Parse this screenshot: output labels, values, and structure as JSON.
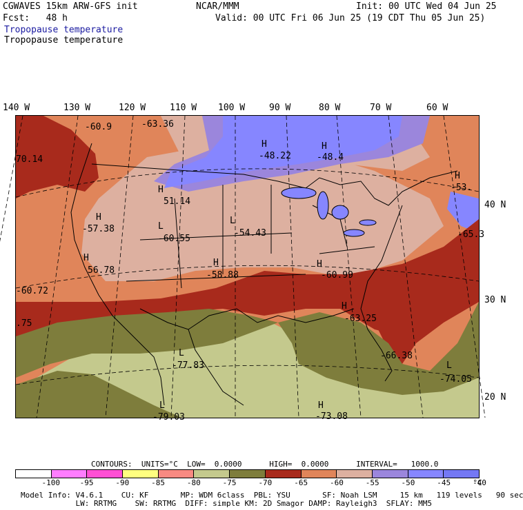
{
  "header": {
    "model_title": "CGWAVES 15km ARW-GFS init",
    "center": "NCAR/MMM",
    "init": "Init: 00 UTC Wed 04 Jun 25",
    "forecast": "Fcst:   48 h",
    "valid": "Valid: 00 UTC Fri 06 Jun 25 (19 CDT Thu 05 Jun 25)",
    "field_name_1": "Tropopause temperature",
    "field_name_2": "Tropopause temperature"
  },
  "map": {
    "longitude_labels": [
      "140 W",
      "130 W",
      "120 W",
      "110 W",
      "100 W",
      "90 W",
      "80 W",
      "70 W",
      "60 W"
    ],
    "latitude_labels": [
      "40 N",
      "30 N",
      "20 N"
    ],
    "extrema_labels": [
      {
        "kind": "",
        "value": "-60.9"
      },
      {
        "kind": "",
        "value": "-63.36"
      },
      {
        "kind": "H",
        "value": "-48.22"
      },
      {
        "kind": "H",
        "value": "-48.4"
      },
      {
        "kind": "",
        "value": "70.14"
      },
      {
        "kind": "H",
        "value": "-53."
      },
      {
        "kind": "H",
        "value": "51.14"
      },
      {
        "kind": "H",
        "value": "-57.38"
      },
      {
        "kind": "L",
        "value": "-60.55"
      },
      {
        "kind": "L",
        "value": "-54.43"
      },
      {
        "kind": "",
        "value": "-65.3"
      },
      {
        "kind": "H",
        "value": "56.78"
      },
      {
        "kind": "H",
        "value": "-58.88"
      },
      {
        "kind": "H",
        "value": "-60.99"
      },
      {
        "kind": "",
        "value": "-60.72"
      },
      {
        "kind": "H",
        "value": "-63.25"
      },
      {
        "kind": "",
        "value": ".75"
      },
      {
        "kind": "",
        "value": "-66.38"
      },
      {
        "kind": "L",
        "value": "-77.83"
      },
      {
        "kind": "L",
        "value": "-74.05"
      },
      {
        "kind": "L",
        "value": "-79.03"
      },
      {
        "kind": "H",
        "value": "-73.08"
      }
    ]
  },
  "contour_info": "CONTOURS:  UNITS=°C  LOW=  0.0000      HIGH=  0.0000      INTERVAL=   1000.0",
  "colorbar": {
    "colors": [
      "#ffffff",
      "#ff7dff",
      "#ff4fd4",
      "#ffff80",
      "#f88a82",
      "#c4c98d",
      "#7e7d3c",
      "#a82a1c",
      "#e0855a",
      "#ddb0a0",
      "#9b86dc",
      "#8686ff",
      "#7478f4"
    ],
    "tick_labels": [
      "-100",
      "-95",
      "-90",
      "-85",
      "-80",
      "-75",
      "-70",
      "-65",
      "-60",
      "-55",
      "-50",
      "-45",
      "-40"
    ],
    "unit_label": "°C"
  },
  "footer": {
    "line1": "Model Info: V4.6.1    CU: KF       MP: WDM 6class  PBL: YSU       SF: Noah LSM     15 km   119 levels   90 sec",
    "line2": "            LW: RRTMG    SW: RRTMG  DIFF: simple KM: 2D Smagor DAMP: Rayleigh3  SFLAY: MM5"
  }
}
